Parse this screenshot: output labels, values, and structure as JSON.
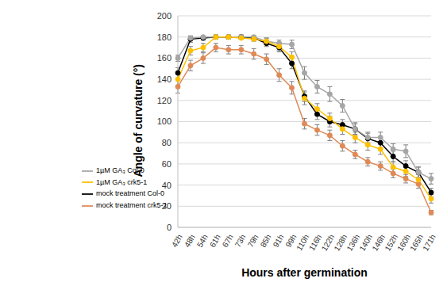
{
  "chart_data": {
    "type": "line",
    "x_label": "Hours after germination",
    "y_label": "Angle of curvature (°)",
    "categories": [
      "42h",
      "48h",
      "54h",
      "61h",
      "67h",
      "73h",
      "79h",
      "85h",
      "91h",
      "99h",
      "110h",
      "116h",
      "122h",
      "128h",
      "136h",
      "140h",
      "146h",
      "152h",
      "160h",
      "165h",
      "171h"
    ],
    "series": [
      {
        "name": "mock treatment Col-0",
        "color": "#000000",
        "marker": "circle",
        "values": [
          146,
          178,
          179,
          180,
          180,
          180,
          179,
          174,
          170,
          155,
          124,
          107,
          100,
          97,
          93,
          84,
          80,
          67,
          58,
          52,
          33
        ],
        "errors": [
          5,
          3,
          2,
          2,
          2,
          2,
          2,
          3,
          4,
          5,
          5,
          5,
          5,
          5,
          5,
          5,
          5,
          5,
          5,
          5,
          4
        ]
      },
      {
        "name": "mock treatment crk5-1",
        "color": "#df8a56",
        "marker": "circle",
        "values": [
          133,
          153,
          160,
          170,
          168,
          168,
          164,
          159,
          144,
          132,
          98,
          92,
          87,
          77,
          69,
          62,
          58,
          51,
          46,
          41,
          14
        ],
        "errors": [
          6,
          5,
          5,
          4,
          4,
          4,
          5,
          5,
          6,
          6,
          5,
          5,
          5,
          5,
          4,
          4,
          4,
          4,
          4,
          4,
          2
        ]
      },
      {
        "name": "1µM GA₃ Col-0",
        "color": "#a6a6a6",
        "marker": "circle",
        "values": [
          160,
          179,
          180,
          180,
          180,
          180,
          180,
          176,
          174,
          173,
          146,
          133,
          126,
          115,
          93,
          85,
          85,
          74,
          72,
          52,
          46
        ],
        "errors": [
          3,
          2,
          1,
          1,
          1,
          1,
          1,
          3,
          3,
          4,
          6,
          6,
          7,
          6,
          6,
          5,
          5,
          5,
          6,
          5,
          5
        ]
      },
      {
        "name": "1µM GA₃ crk5-1",
        "color": "#ffc000",
        "marker": "circle",
        "values": [
          140,
          167,
          170,
          180,
          180,
          179,
          178,
          176,
          171,
          161,
          122,
          112,
          103,
          93,
          85,
          78,
          74,
          57,
          53,
          45,
          27
        ],
        "errors": [
          6,
          4,
          4,
          1,
          1,
          1,
          2,
          3,
          4,
          5,
          6,
          5,
          5,
          5,
          5,
          5,
          5,
          5,
          5,
          5,
          4
        ]
      }
    ],
    "ylim": [
      0,
      200
    ],
    "yticks": [
      0,
      20,
      40,
      60,
      80,
      100,
      120,
      140,
      160,
      180,
      200
    ],
    "grid": true,
    "legend": "lower left"
  }
}
